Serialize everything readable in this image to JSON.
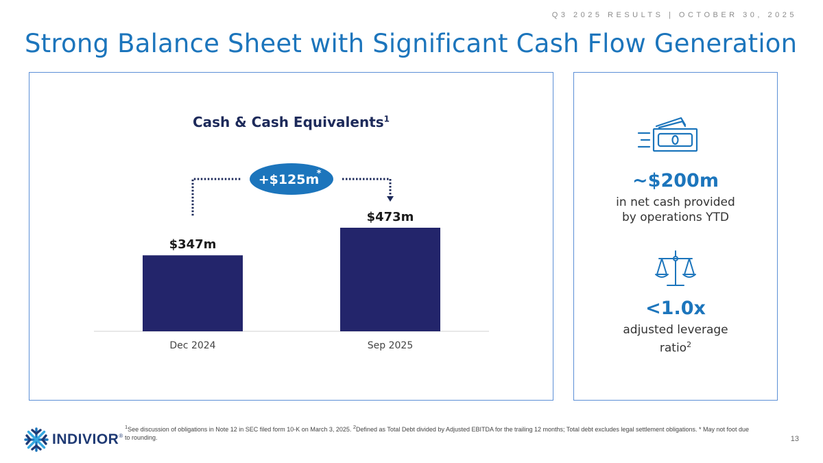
{
  "header_tag": "Q3 2025 RESULTS | OCTOBER 30, 2025",
  "title": "Strong Balance Sheet with Significant Cash Flow Generation",
  "colors": {
    "accent": "#1c75bc",
    "bar": "#23256b",
    "panel_border": "#5b8fd6",
    "badge": "#1c75bc"
  },
  "chart_data": {
    "type": "bar",
    "title": "Cash & Cash Equivalents",
    "title_superscript": "1",
    "categories": [
      "Dec 2024",
      "Sep 2025"
    ],
    "values": [
      347,
      473
    ],
    "value_labels": [
      "$347m",
      "$473m"
    ],
    "unit": "$m",
    "ylim": [
      0,
      473
    ],
    "grid": false,
    "annotation": {
      "text": "+$125m",
      "superscript": "*",
      "from": "Dec 2024",
      "to": "Sep 2025"
    }
  },
  "side_stats": [
    {
      "icon": "cash-icon",
      "value": "~$200m",
      "line1": "in net cash provided",
      "line2": "by operations YTD"
    },
    {
      "icon": "scales-icon",
      "value": "<1.0x",
      "line1": "adjusted leverage",
      "line2": "ratio",
      "line2_superscript": "2"
    }
  ],
  "footnote": {
    "sup1": "1",
    "text1": "See discussion of obligations in Note 12 in SEC filed form 10-K on March 3, 2025. ",
    "sup2": "2",
    "text2": "Defined as Total Debt divided by Adjusted EBITDA for the trailing 12 months; Total debt excludes legal settlement obligations. * May not foot due to rounding."
  },
  "page_number": "13",
  "logo": {
    "text": "INDIVIOR",
    "mark": "®"
  }
}
